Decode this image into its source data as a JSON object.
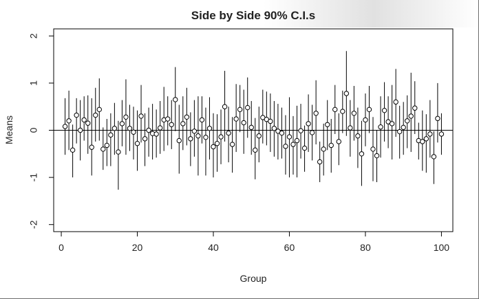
{
  "chart_data": {
    "type": "scatter",
    "title": "Side by Side 90% C.I.s",
    "xlabel": "Group",
    "ylabel": "Means",
    "xlim": [
      -2,
      103
    ],
    "ylim": [
      -2.15,
      2.15
    ],
    "x_ticks": [
      0,
      20,
      40,
      60,
      80,
      100
    ],
    "y_ticks": [
      -2,
      -1,
      0,
      1,
      2
    ],
    "reference_line_y": 0,
    "grid": false,
    "legend": "none",
    "colors": {
      "points": "#000000",
      "lines": "#000000",
      "axes": "#000000",
      "background": "#ffffff"
    },
    "series": [
      {
        "x": [
          1,
          2,
          3,
          4,
          5,
          6,
          7,
          8,
          9,
          10,
          11,
          12,
          13,
          14,
          15,
          16,
          17,
          18,
          19,
          20,
          21,
          22,
          23,
          24,
          25,
          26,
          27,
          28,
          29,
          30,
          31,
          32,
          33,
          34,
          35,
          36,
          37,
          38,
          39,
          40,
          41,
          42,
          43,
          44,
          45,
          46,
          47,
          48,
          49,
          50,
          51,
          52,
          53,
          54,
          55,
          56,
          57,
          58,
          59,
          60,
          61,
          62,
          63,
          64,
          65,
          66,
          67,
          68,
          69,
          70,
          71,
          72,
          73,
          74,
          75,
          76,
          77,
          78,
          79,
          80,
          81,
          82,
          83,
          84,
          85,
          86,
          87,
          88,
          89,
          90,
          91,
          92,
          93,
          94,
          95,
          96,
          97,
          98,
          99,
          100
        ],
        "means": [
          0.08,
          0.2,
          -0.42,
          0.32,
          0,
          0.22,
          0.15,
          -0.36,
          0.32,
          0.44,
          -0.4,
          -0.32,
          -0.1,
          0.04,
          -0.46,
          0.14,
          0.28,
          0.04,
          -0.04,
          -0.28,
          0.3,
          -0.18,
          0,
          -0.07,
          -0.08,
          0.05,
          0.22,
          0.24,
          0.12,
          0.65,
          -0.22,
          0.14,
          0.28,
          -0.18,
          -0.02,
          -0.12,
          0.22,
          -0.15,
          0.04,
          -0.35,
          -0.28,
          -0.14,
          0.5,
          -0.06,
          -0.3,
          0.24,
          0.44,
          0.16,
          0.48,
          0.06,
          -0.42,
          -0.12,
          0.27,
          0.23,
          0.19,
          0.04,
          -0.02,
          -0.06,
          -0.34,
          -0.14,
          -0.3,
          -0.22,
          -0.01,
          -0.38,
          0.14,
          -0.05,
          0.36,
          -0.67,
          -0.4,
          0.12,
          -0.32,
          0.44,
          -0.24,
          0.4,
          0.78,
          0.05,
          0.36,
          -0.12,
          -0.5,
          0.22,
          0.44,
          -0.4,
          -0.54,
          0.07,
          0.42,
          0.18,
          0.14,
          0.6,
          -0.03,
          0.06,
          0.2,
          0.3,
          0.47,
          -0.22,
          -0.24,
          -0.18,
          -0.08,
          -0.56,
          0.25,
          -0.08
        ],
        "lower": [
          -0.52,
          -0.42,
          -1,
          -0.28,
          -0.64,
          -0.22,
          -0.5,
          -0.96,
          -0.24,
          -0.22,
          -0.84,
          -0.76,
          -0.76,
          -0.52,
          -1.26,
          -0.34,
          -0.52,
          -0.44,
          -0.62,
          -0.86,
          -0.26,
          -0.76,
          -0.56,
          -0.62,
          -0.58,
          -0.5,
          -0.44,
          -0.32,
          -0.4,
          -0.02,
          -0.92,
          -0.42,
          -0.32,
          -0.76,
          -0.56,
          -0.96,
          -0.28,
          -0.96,
          -0.62,
          -1,
          -0.88,
          -0.72,
          -0.24,
          -0.68,
          -0.9,
          -0.46,
          -0.04,
          -0.5,
          -0.16,
          -0.52,
          -1.04,
          -0.68,
          -0.28,
          -0.32,
          -0.46,
          -0.56,
          -0.62,
          -0.6,
          -0.94,
          -1,
          -0.94,
          -1,
          -0.6,
          -0.88,
          -0.46,
          -0.64,
          -0.3,
          -1.1,
          -0.96,
          -0.42,
          -0.9,
          -0.08,
          -0.74,
          -0.06,
          -0.12,
          -0.56,
          -0.22,
          -0.8,
          -1.18,
          -0.34,
          -0.06,
          -1.08,
          -1.1,
          -0.58,
          -0.24,
          -0.38,
          -0.62,
          -0.14,
          -0.6,
          -0.52,
          -0.38,
          -0.46,
          -0.08,
          -0.62,
          -0.86,
          -0.9,
          -0.58,
          -1.14,
          -0.26,
          -0.52
        ],
        "upper": [
          0.68,
          0.84,
          0.12,
          0.68,
          0.64,
          0.72,
          0.74,
          0.68,
          0.9,
          1.1,
          0.06,
          0.24,
          0.36,
          0.58,
          0.2,
          0.64,
          1.08,
          0.54,
          0.5,
          0.42,
          0.96,
          0.36,
          0.48,
          0.56,
          0.44,
          0.62,
          0.92,
          0.72,
          0.64,
          1.34,
          0.54,
          0.72,
          0.9,
          0.38,
          0.64,
          0.72,
          0.72,
          0.48,
          0.7,
          0.36,
          0.34,
          0.44,
          1.26,
          0.5,
          0.28,
          0.98,
          0.96,
          0.86,
          1.12,
          0.62,
          0.26,
          0.5,
          0.86,
          0.82,
          0.78,
          0.62,
          0.56,
          0.48,
          0.32,
          0.7,
          0.3,
          0.52,
          0.56,
          0.1,
          0.76,
          0.54,
          1.06,
          -0.24,
          0.14,
          0.64,
          0.24,
          0.96,
          0.36,
          0.84,
          1.68,
          0.64,
          0.94,
          0.48,
          0.2,
          0.78,
          0.94,
          0.28,
          0,
          0.72,
          1.02,
          0.72,
          0.96,
          1.3,
          0.52,
          0.6,
          0.74,
          1.22,
          1.04,
          0.16,
          0.42,
          0.34,
          0.64,
          -0.02,
          1,
          0.36
        ]
      }
    ]
  }
}
